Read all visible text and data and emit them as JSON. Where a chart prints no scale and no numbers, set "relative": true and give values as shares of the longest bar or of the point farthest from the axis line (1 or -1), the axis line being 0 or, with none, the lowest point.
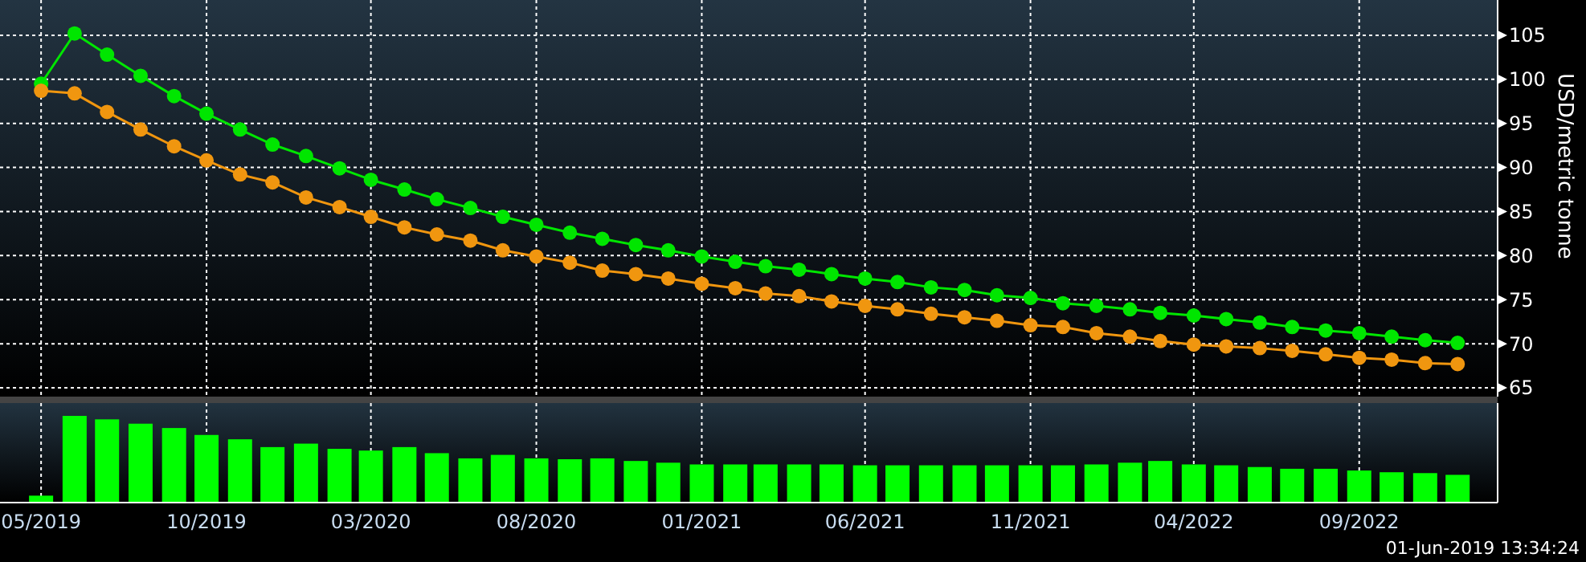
{
  "chart_data": [
    {
      "type": "line",
      "ylabel": "USD/metric tonne",
      "marker": "circle",
      "grid": true,
      "tick_labels": "y",
      "x": [
        "2019-05",
        "2019-06",
        "2019-07",
        "2019-08",
        "2019-09",
        "2019-10",
        "2019-11",
        "2019-12",
        "2020-01",
        "2020-02",
        "2020-03",
        "2020-04",
        "2020-05",
        "2020-06",
        "2020-07",
        "2020-08",
        "2020-09",
        "2020-10",
        "2020-11",
        "2020-12",
        "2021-01",
        "2021-02",
        "2021-03",
        "2021-04",
        "2021-05",
        "2021-06",
        "2021-07",
        "2021-08",
        "2021-09",
        "2021-10",
        "2021-11",
        "2021-12",
        "2022-01",
        "2022-02",
        "2022-03",
        "2022-04",
        "2022-05",
        "2022-06",
        "2022-07",
        "2022-08",
        "2022-09",
        "2022-10",
        "2022-11",
        "2022-12"
      ],
      "xlim": [
        "2019-03-24",
        "2023-01-07"
      ],
      "xticks": [
        {
          "value": "2019-05",
          "label": null
        },
        {
          "value": "2019-10",
          "label": null
        },
        {
          "value": "2020-03",
          "label": null
        },
        {
          "value": "2020-08",
          "label": null
        },
        {
          "value": "2021-01",
          "label": null
        },
        {
          "value": "2021-06",
          "label": null
        },
        {
          "value": "2021-11",
          "label": null
        },
        {
          "value": "2022-04",
          "label": null
        },
        {
          "value": "2022-09",
          "label": null
        }
      ],
      "ylim": [
        64,
        109
      ],
      "yticks": [
        65,
        70,
        75,
        80,
        85,
        90,
        95,
        100,
        105
      ],
      "series": [
        {
          "color": "#00e600",
          "values": [
            99.5,
            105.2,
            102.8,
            100.4,
            98.1,
            96.1,
            94.3,
            92.6,
            91.3,
            89.9,
            88.6,
            87.5,
            86.4,
            85.4,
            84.4,
            83.5,
            82.6,
            81.9,
            81.2,
            80.6,
            79.9,
            79.3,
            78.8,
            78.4,
            77.9,
            77.4,
            77.0,
            76.4,
            76.1,
            75.5,
            75.2,
            74.6,
            74.3,
            73.9,
            73.5,
            73.2,
            72.8,
            72.4,
            71.9,
            71.5,
            71.2,
            70.8,
            70.4,
            70.1
          ]
        },
        {
          "color": "#f0960f",
          "values": [
            98.7,
            98.4,
            96.3,
            94.3,
            92.4,
            90.8,
            89.2,
            88.3,
            86.6,
            85.5,
            84.4,
            83.2,
            82.4,
            81.7,
            80.6,
            79.9,
            79.2,
            78.3,
            77.9,
            77.4,
            76.8,
            76.3,
            75.7,
            75.4,
            74.8,
            74.3,
            73.9,
            73.4,
            73.0,
            72.6,
            72.1,
            71.9,
            71.2,
            70.8,
            70.3,
            69.9,
            69.7,
            69.5,
            69.2,
            68.8,
            68.4,
            68.2,
            67.8,
            67.7
          ]
        }
      ]
    },
    {
      "type": "bar",
      "relative": true,
      "grid": "x",
      "color": "#00ff00",
      "x": [
        "2019-05",
        "2019-06",
        "2019-07",
        "2019-08",
        "2019-09",
        "2019-10",
        "2019-11",
        "2019-12",
        "2020-01",
        "2020-02",
        "2020-03",
        "2020-04",
        "2020-05",
        "2020-06",
        "2020-07",
        "2020-08",
        "2020-09",
        "2020-10",
        "2020-11",
        "2020-12",
        "2021-01",
        "2021-02",
        "2021-03",
        "2021-04",
        "2021-05",
        "2021-06",
        "2021-07",
        "2021-08",
        "2021-09",
        "2021-10",
        "2021-11",
        "2021-12",
        "2022-01",
        "2022-02",
        "2022-03",
        "2022-04",
        "2022-05",
        "2022-06",
        "2022-07",
        "2022-08",
        "2022-09",
        "2022-10",
        "2022-11",
        "2022-12"
      ],
      "xlim": [
        "2019-03-24",
        "2023-01-07"
      ],
      "xticks": [
        {
          "value": "2019-05",
          "label": "05/2019"
        },
        {
          "value": "2019-10",
          "label": "10/2019"
        },
        {
          "value": "2020-03",
          "label": "03/2020"
        },
        {
          "value": "2020-08",
          "label": "08/2020"
        },
        {
          "value": "2021-01",
          "label": "01/2021"
        },
        {
          "value": "2021-06",
          "label": "06/2021"
        },
        {
          "value": "2021-11",
          "label": "11/2021"
        },
        {
          "value": "2022-04",
          "label": "04/2022"
        },
        {
          "value": "2022-09",
          "label": "09/2022"
        }
      ],
      "values": [
        0.08,
        1,
        0.96,
        0.91,
        0.86,
        0.78,
        0.73,
        0.64,
        0.68,
        0.62,
        0.6,
        0.64,
        0.57,
        0.51,
        0.55,
        0.51,
        0.5,
        0.51,
        0.48,
        0.46,
        0.44,
        0.44,
        0.44,
        0.44,
        0.44,
        0.43,
        0.43,
        0.43,
        0.43,
        0.43,
        0.43,
        0.43,
        0.44,
        0.46,
        0.48,
        0.44,
        0.43,
        0.41,
        0.39,
        0.39,
        0.37,
        0.35,
        0.34,
        0.32
      ],
      "annotations": [
        "01-Jun-2019 13:34:24"
      ]
    }
  ]
}
